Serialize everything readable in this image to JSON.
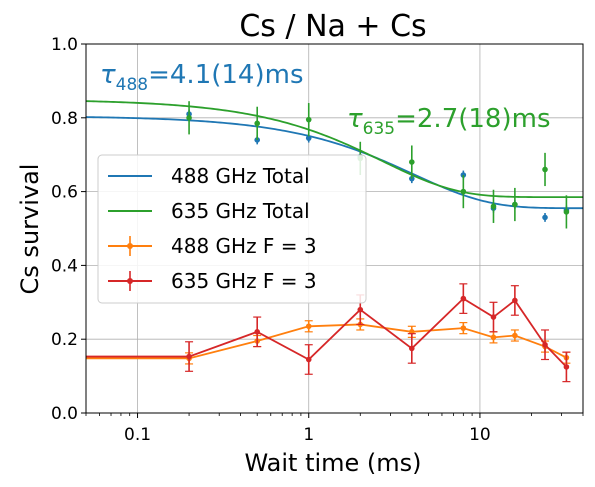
{
  "chart_data": {
    "type": "scatter",
    "title": "Cs / Na + Cs",
    "xlabel": "Wait time (ms)",
    "ylabel": "Cs survival",
    "xscale": "log",
    "xlim": [
      0.05,
      40
    ],
    "ylim": [
      0.0,
      1.0
    ],
    "grid": true,
    "legend_position": "center-left",
    "x_ticks": [
      {
        "value": 0.1,
        "label": "0.1"
      },
      {
        "value": 1,
        "label": "1"
      },
      {
        "value": 10,
        "label": "10"
      }
    ],
    "y_ticks": [
      {
        "value": 0.0,
        "label": "0.0"
      },
      {
        "value": 0.2,
        "label": "0.2"
      },
      {
        "value": 0.4,
        "label": "0.4"
      },
      {
        "value": 0.6,
        "label": "0.6"
      },
      {
        "value": 0.8,
        "label": "0.8"
      },
      {
        "value": 1.0,
        "label": "1.0"
      }
    ],
    "annotations": [
      {
        "label": "τ",
        "sub": "488",
        "eq": "=4.1(14)ms",
        "color": "#1f77b4"
      },
      {
        "label": "τ",
        "sub": "635",
        "eq": "=2.7(18)ms",
        "color": "#2ca02c"
      }
    ],
    "fits": [
      {
        "name": "488 GHz Total",
        "color": "#1f77b4",
        "offset": 0.555,
        "amplitude": 0.25,
        "tau": 4.1
      },
      {
        "name": "635 GHz Total",
        "color": "#2ca02c",
        "offset": 0.585,
        "amplitude": 0.265,
        "tau": 2.7
      }
    ],
    "series": [
      {
        "name": "488 GHz Total",
        "role": "points",
        "color": "#1f77b4",
        "x": [
          0.2,
          0.5,
          1,
          2,
          4,
          8,
          12,
          16,
          24,
          32
        ],
        "y": [
          0.81,
          0.74,
          0.745,
          0.695,
          0.635,
          0.645,
          0.555,
          0.565,
          0.53,
          0.55
        ],
        "err": [
          0.012,
          0.012,
          0.012,
          0.012,
          0.012,
          0.012,
          0.012,
          0.012,
          0.012,
          0.012
        ]
      },
      {
        "name": "635 GHz Total",
        "role": "points",
        "color": "#2ca02c",
        "x": [
          0.2,
          0.5,
          1,
          2,
          4,
          8,
          12,
          16,
          24,
          32
        ],
        "y": [
          0.8,
          0.785,
          0.795,
          0.69,
          0.68,
          0.6,
          0.56,
          0.565,
          0.66,
          0.545
        ],
        "err": [
          0.045,
          0.045,
          0.045,
          0.045,
          0.045,
          0.045,
          0.045,
          0.045,
          0.045,
          0.045
        ]
      },
      {
        "name": "488 GHz F = 3",
        "role": "line",
        "color": "#ff7f0e",
        "x": [
          0.05,
          0.2,
          0.5,
          1,
          2,
          4,
          8,
          12,
          16,
          24,
          32
        ],
        "y": [
          0.148,
          0.148,
          0.195,
          0.235,
          0.24,
          0.22,
          0.23,
          0.205,
          0.21,
          0.18,
          0.15
        ],
        "err": [
          0,
          0.015,
          0.015,
          0.015,
          0.015,
          0.015,
          0.015,
          0.015,
          0.015,
          0.015,
          0.015
        ]
      },
      {
        "name": "635 GHz F = 3",
        "role": "line",
        "color": "#d62728",
        "x": [
          0.05,
          0.2,
          0.5,
          1,
          2,
          4,
          8,
          12,
          16,
          24,
          32
        ],
        "y": [
          0.153,
          0.153,
          0.22,
          0.145,
          0.28,
          0.175,
          0.31,
          0.26,
          0.305,
          0.185,
          0.125
        ],
        "err": [
          0,
          0.04,
          0.04,
          0.04,
          0.04,
          0.04,
          0.04,
          0.04,
          0.04,
          0.04,
          0.04
        ]
      }
    ],
    "legend": [
      {
        "label": "488 GHz Total",
        "color": "#1f77b4",
        "marker": false
      },
      {
        "label": "635 GHz Total",
        "color": "#2ca02c",
        "marker": false
      },
      {
        "label": "488 GHz F = 3",
        "color": "#ff7f0e",
        "marker": true
      },
      {
        "label": "635 GHz F = 3",
        "color": "#d62728",
        "marker": true
      }
    ]
  }
}
